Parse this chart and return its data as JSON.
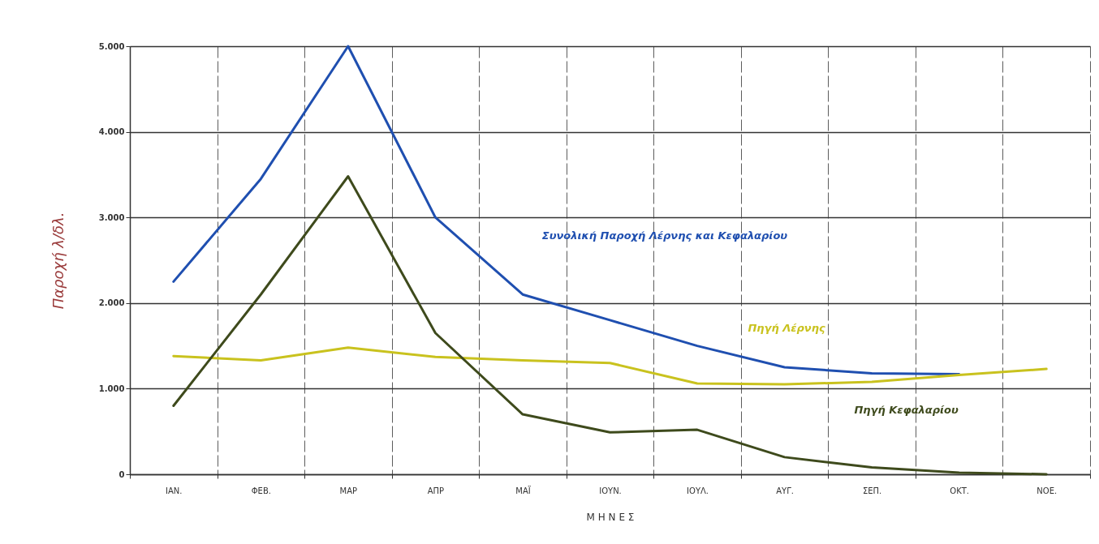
{
  "chart_data": {
    "type": "line",
    "ylabel": "Παροχή λ/δλ.",
    "xlabel": "Μ Η Ν Ε Σ",
    "categories": [
      "ΙΑΝ.",
      "ΦΕΒ.",
      "ΜΑΡ",
      "ΑΠΡ",
      "ΜΑΪ",
      "ΙΟΥΝ.",
      "ΙΟΥΛ.",
      "ΑΥΓ.",
      "ΣΕΠ.",
      "ΟΚΤ.",
      "ΝΟΕ."
    ],
    "ylim": [
      0,
      5000
    ],
    "yticks": [
      0,
      {
        "value": 1000,
        "label": "1.000"
      },
      {
        "value": 2000,
        "label": "2.000"
      },
      {
        "value": 3000,
        "label": "3.000"
      },
      {
        "value": 4000,
        "label": "4.000"
      },
      {
        "value": 5000,
        "label": "5.000"
      }
    ],
    "grid": true,
    "legend": false,
    "line_style": "solid",
    "series": [
      {
        "name": "Συνολική Παροχή Λέρνης και Κεφαλαρίου",
        "color": "#1f4fb0",
        "values": [
          2250,
          3450,
          5000,
          3000,
          2100,
          1800,
          1500,
          1250,
          1180,
          1170,
          null
        ]
      },
      {
        "name": "Πηγή Λέρνης",
        "color": "#c9c21e",
        "values": [
          1380,
          1330,
          1480,
          1370,
          1330,
          1300,
          1060,
          1050,
          1080,
          1160,
          1230
        ]
      },
      {
        "name": "Πηγή Κεφαλαρίου",
        "color": "#3e4a1c",
        "values": [
          800,
          2100,
          3480,
          1650,
          700,
          490,
          520,
          200,
          80,
          20,
          0
        ]
      }
    ]
  }
}
